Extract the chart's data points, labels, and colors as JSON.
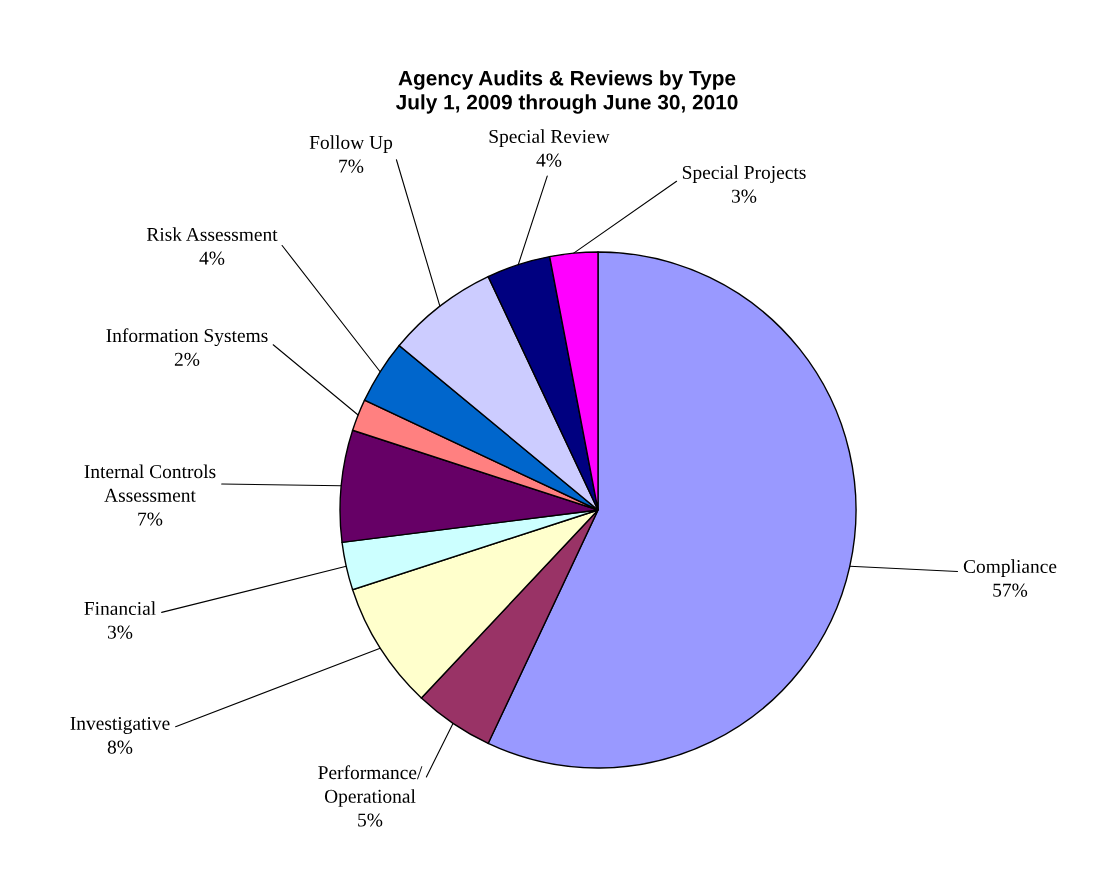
{
  "chart_data": {
    "type": "pie",
    "title": "Agency Audits & Reviews by Type\nJuly 1, 2009 through June 30, 2010",
    "categories": [
      "Compliance",
      "Performance/\nOperational",
      "Investigative",
      "Financial",
      "Internal Controls\nAssessment",
      "Information Systems",
      "Risk Assessment",
      "Follow Up",
      "Special Review",
      "Special Projects"
    ],
    "values": [
      57,
      5,
      8,
      3,
      7,
      2,
      4,
      7,
      4,
      3
    ],
    "value_labels": [
      "57%",
      "5%",
      "8%",
      "3%",
      "7%",
      "2%",
      "4%",
      "7%",
      "4%",
      "3%"
    ],
    "colors": [
      "#9999ff",
      "#993366",
      "#ffffcc",
      "#ccffff",
      "#660066",
      "#ff8080",
      "#0066cc",
      "#ccccff",
      "#000080",
      "#ff00ff"
    ],
    "legend": false
  }
}
